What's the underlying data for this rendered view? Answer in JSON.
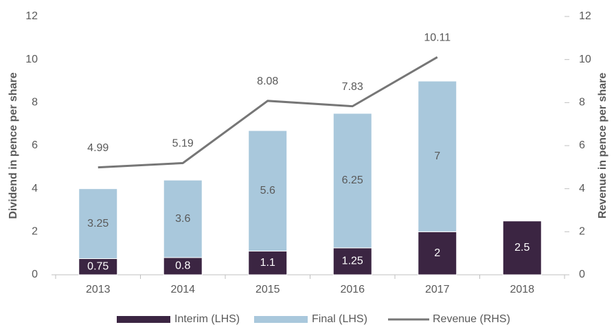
{
  "chart_data": {
    "type": "bar",
    "categories": [
      "2013",
      "2014",
      "2015",
      "2016",
      "2017",
      "2018"
    ],
    "series": [
      {
        "name": "Interim (LHS)",
        "color": "#3b2542",
        "values": [
          0.75,
          0.8,
          1.1,
          1.25,
          2,
          2.5
        ]
      },
      {
        "name": "Final (LHS)",
        "color": "#a9c8dc",
        "values": [
          3.25,
          3.6,
          5.6,
          6.25,
          7,
          null
        ]
      },
      {
        "name": "Revenue (RHS)",
        "color": "#767676",
        "type": "line",
        "axis": "y2",
        "values": [
          4.99,
          5.19,
          8.08,
          7.83,
          10.11,
          null
        ]
      }
    ],
    "ylabel": "Dividend in pence per share",
    "y2label": "Revenue in pence per share",
    "ylim": [
      0,
      12
    ],
    "yticks": [
      0,
      2,
      4,
      6,
      8,
      10,
      12
    ],
    "y2lim": [
      0,
      12
    ],
    "y2ticks": [
      0,
      2,
      4,
      6,
      8,
      10,
      12
    ],
    "stacked": true,
    "grid": false,
    "legend": "bottom"
  }
}
